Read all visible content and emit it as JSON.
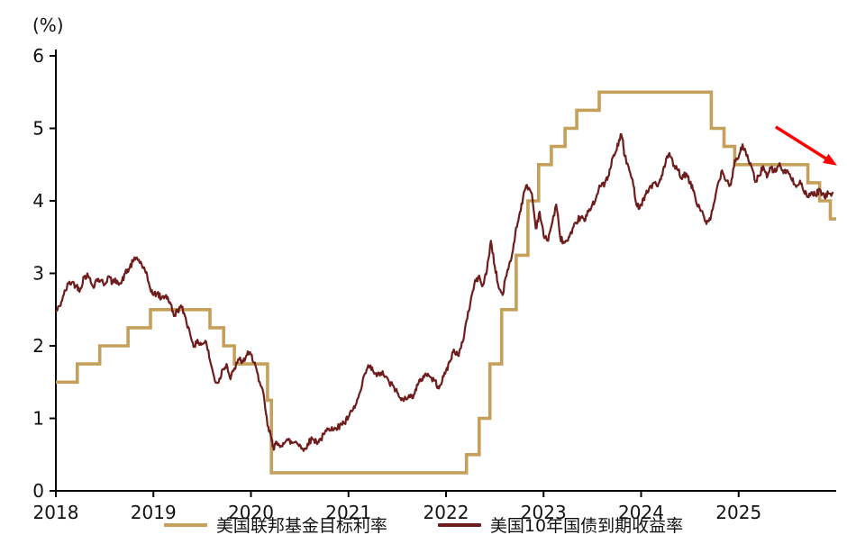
{
  "chart_data": {
    "type": "line",
    "title": "",
    "unit_label": "(%)",
    "x_range": [
      2018,
      2026
    ],
    "y_range": [
      0,
      6
    ],
    "y_ticks": [
      0,
      1,
      2,
      3,
      4,
      5,
      6
    ],
    "x_ticks": [
      2018,
      2019,
      2020,
      2021,
      2022,
      2023,
      2024,
      2025
    ],
    "grid": false,
    "legend_position": "bottom",
    "series": [
      {
        "name": "美国联邦基金目标利率",
        "color": "#C5A05A",
        "style": "step",
        "points": [
          [
            2018.0,
            1.5
          ],
          [
            2018.22,
            1.75
          ],
          [
            2018.45,
            2.0
          ],
          [
            2018.74,
            2.25
          ],
          [
            2018.97,
            2.5
          ],
          [
            2019.58,
            2.25
          ],
          [
            2019.72,
            2.0
          ],
          [
            2019.83,
            1.75
          ],
          [
            2020.17,
            1.25
          ],
          [
            2020.21,
            0.25
          ],
          [
            2022.21,
            0.5
          ],
          [
            2022.34,
            1.0
          ],
          [
            2022.45,
            1.75
          ],
          [
            2022.57,
            2.5
          ],
          [
            2022.72,
            3.25
          ],
          [
            2022.84,
            4.0
          ],
          [
            2022.95,
            4.5
          ],
          [
            2023.08,
            4.75
          ],
          [
            2023.22,
            5.0
          ],
          [
            2023.34,
            5.25
          ],
          [
            2023.57,
            5.5
          ],
          [
            2024.72,
            5.0
          ],
          [
            2024.85,
            4.75
          ],
          [
            2024.96,
            4.5
          ],
          [
            2025.71,
            4.25
          ],
          [
            2025.83,
            4.0
          ],
          [
            2025.94,
            3.75
          ],
          [
            2026.0,
            3.75
          ]
        ]
      },
      {
        "name": "美国10年国债到期收益率",
        "color": "#6E1D1C",
        "style": "line",
        "points": [
          [
            2018.0,
            2.46
          ],
          [
            2018.04,
            2.55
          ],
          [
            2018.08,
            2.7
          ],
          [
            2018.13,
            2.86
          ],
          [
            2018.17,
            2.88
          ],
          [
            2018.21,
            2.82
          ],
          [
            2018.25,
            2.78
          ],
          [
            2018.29,
            2.96
          ],
          [
            2018.33,
            2.97
          ],
          [
            2018.38,
            2.82
          ],
          [
            2018.42,
            2.92
          ],
          [
            2018.46,
            2.9
          ],
          [
            2018.5,
            2.85
          ],
          [
            2018.54,
            2.96
          ],
          [
            2018.58,
            2.87
          ],
          [
            2018.63,
            2.9
          ],
          [
            2018.67,
            2.86
          ],
          [
            2018.71,
            3.0
          ],
          [
            2018.75,
            3.06
          ],
          [
            2018.79,
            3.16
          ],
          [
            2018.83,
            3.22
          ],
          [
            2018.88,
            3.12
          ],
          [
            2018.92,
            3.01
          ],
          [
            2018.96,
            2.83
          ],
          [
            2019.0,
            2.7
          ],
          [
            2019.04,
            2.73
          ],
          [
            2019.08,
            2.65
          ],
          [
            2019.13,
            2.7
          ],
          [
            2019.17,
            2.6
          ],
          [
            2019.21,
            2.41
          ],
          [
            2019.25,
            2.5
          ],
          [
            2019.29,
            2.53
          ],
          [
            2019.33,
            2.39
          ],
          [
            2019.38,
            2.14
          ],
          [
            2019.42,
            2.0
          ],
          [
            2019.46,
            2.05
          ],
          [
            2019.5,
            2.03
          ],
          [
            2019.54,
            2.06
          ],
          [
            2019.58,
            1.8
          ],
          [
            2019.63,
            1.52
          ],
          [
            2019.67,
            1.5
          ],
          [
            2019.71,
            1.68
          ],
          [
            2019.75,
            1.75
          ],
          [
            2019.79,
            1.54
          ],
          [
            2019.83,
            1.69
          ],
          [
            2019.88,
            1.81
          ],
          [
            2019.92,
            1.78
          ],
          [
            2019.96,
            1.88
          ],
          [
            2020.0,
            1.88
          ],
          [
            2020.04,
            1.77
          ],
          [
            2020.08,
            1.51
          ],
          [
            2020.13,
            1.33
          ],
          [
            2020.17,
            0.9
          ],
          [
            2020.21,
            0.72
          ],
          [
            2020.23,
            0.6
          ],
          [
            2020.25,
            0.64
          ],
          [
            2020.29,
            0.63
          ],
          [
            2020.33,
            0.66
          ],
          [
            2020.38,
            0.7
          ],
          [
            2020.42,
            0.66
          ],
          [
            2020.46,
            0.68
          ],
          [
            2020.5,
            0.64
          ],
          [
            2020.54,
            0.55
          ],
          [
            2020.58,
            0.65
          ],
          [
            2020.63,
            0.72
          ],
          [
            2020.67,
            0.68
          ],
          [
            2020.71,
            0.7
          ],
          [
            2020.75,
            0.78
          ],
          [
            2020.79,
            0.85
          ],
          [
            2020.83,
            0.88
          ],
          [
            2020.88,
            0.84
          ],
          [
            2020.92,
            0.93
          ],
          [
            2020.96,
            0.93
          ],
          [
            2021.0,
            1.02
          ],
          [
            2021.04,
            1.1
          ],
          [
            2021.08,
            1.2
          ],
          [
            2021.13,
            1.4
          ],
          [
            2021.17,
            1.62
          ],
          [
            2021.21,
            1.72
          ],
          [
            2021.25,
            1.66
          ],
          [
            2021.29,
            1.58
          ],
          [
            2021.33,
            1.63
          ],
          [
            2021.38,
            1.58
          ],
          [
            2021.42,
            1.48
          ],
          [
            2021.46,
            1.45
          ],
          [
            2021.5,
            1.35
          ],
          [
            2021.54,
            1.25
          ],
          [
            2021.58,
            1.3
          ],
          [
            2021.63,
            1.29
          ],
          [
            2021.67,
            1.33
          ],
          [
            2021.71,
            1.46
          ],
          [
            2021.75,
            1.54
          ],
          [
            2021.79,
            1.62
          ],
          [
            2021.83,
            1.58
          ],
          [
            2021.88,
            1.52
          ],
          [
            2021.92,
            1.44
          ],
          [
            2021.96,
            1.51
          ],
          [
            2022.0,
            1.66
          ],
          [
            2022.04,
            1.78
          ],
          [
            2022.08,
            1.95
          ],
          [
            2022.13,
            1.86
          ],
          [
            2022.17,
            2.05
          ],
          [
            2022.21,
            2.35
          ],
          [
            2022.25,
            2.6
          ],
          [
            2022.29,
            2.85
          ],
          [
            2022.33,
            2.95
          ],
          [
            2022.38,
            2.84
          ],
          [
            2022.42,
            3.05
          ],
          [
            2022.46,
            3.45
          ],
          [
            2022.5,
            3.1
          ],
          [
            2022.54,
            2.8
          ],
          [
            2022.58,
            2.7
          ],
          [
            2022.63,
            3.05
          ],
          [
            2022.67,
            3.2
          ],
          [
            2022.71,
            3.55
          ],
          [
            2022.75,
            3.8
          ],
          [
            2022.79,
            4.05
          ],
          [
            2022.83,
            4.22
          ],
          [
            2022.88,
            4.1
          ],
          [
            2022.92,
            3.62
          ],
          [
            2022.96,
            3.85
          ],
          [
            2023.0,
            3.52
          ],
          [
            2023.04,
            3.45
          ],
          [
            2023.08,
            3.65
          ],
          [
            2023.13,
            3.95
          ],
          [
            2023.17,
            3.5
          ],
          [
            2023.21,
            3.42
          ],
          [
            2023.25,
            3.45
          ],
          [
            2023.29,
            3.55
          ],
          [
            2023.33,
            3.7
          ],
          [
            2023.38,
            3.78
          ],
          [
            2023.42,
            3.72
          ],
          [
            2023.46,
            3.85
          ],
          [
            2023.5,
            3.95
          ],
          [
            2023.54,
            4.05
          ],
          [
            2023.58,
            4.2
          ],
          [
            2023.63,
            4.25
          ],
          [
            2023.67,
            4.35
          ],
          [
            2023.71,
            4.6
          ],
          [
            2023.75,
            4.7
          ],
          [
            2023.79,
            4.92
          ],
          [
            2023.81,
            4.85
          ],
          [
            2023.83,
            4.62
          ],
          [
            2023.88,
            4.42
          ],
          [
            2023.92,
            4.22
          ],
          [
            2023.96,
            3.92
          ],
          [
            2024.0,
            3.95
          ],
          [
            2024.04,
            4.08
          ],
          [
            2024.08,
            4.16
          ],
          [
            2024.13,
            4.25
          ],
          [
            2024.17,
            4.2
          ],
          [
            2024.21,
            4.35
          ],
          [
            2024.25,
            4.52
          ],
          [
            2024.29,
            4.66
          ],
          [
            2024.33,
            4.48
          ],
          [
            2024.38,
            4.42
          ],
          [
            2024.42,
            4.3
          ],
          [
            2024.46,
            4.38
          ],
          [
            2024.5,
            4.24
          ],
          [
            2024.54,
            4.14
          ],
          [
            2024.58,
            3.92
          ],
          [
            2024.63,
            3.85
          ],
          [
            2024.67,
            3.68
          ],
          [
            2024.71,
            3.74
          ],
          [
            2024.75,
            3.98
          ],
          [
            2024.79,
            4.25
          ],
          [
            2024.83,
            4.42
          ],
          [
            2024.88,
            4.28
          ],
          [
            2024.92,
            4.22
          ],
          [
            2024.96,
            4.56
          ],
          [
            2025.0,
            4.6
          ],
          [
            2025.04,
            4.78
          ],
          [
            2025.08,
            4.62
          ],
          [
            2025.13,
            4.48
          ],
          [
            2025.17,
            4.26
          ],
          [
            2025.21,
            4.35
          ],
          [
            2025.25,
            4.48
          ],
          [
            2025.29,
            4.32
          ],
          [
            2025.33,
            4.45
          ],
          [
            2025.38,
            4.4
          ],
          [
            2025.42,
            4.52
          ],
          [
            2025.46,
            4.38
          ],
          [
            2025.5,
            4.42
          ],
          [
            2025.54,
            4.3
          ],
          [
            2025.58,
            4.22
          ],
          [
            2025.63,
            4.28
          ],
          [
            2025.67,
            4.12
          ],
          [
            2025.71,
            4.05
          ],
          [
            2025.75,
            4.12
          ],
          [
            2025.79,
            4.08
          ],
          [
            2025.83,
            4.16
          ],
          [
            2025.88,
            4.05
          ],
          [
            2025.92,
            4.1
          ],
          [
            2025.97,
            4.12
          ]
        ]
      }
    ],
    "annotation_arrow": {
      "color": "#FF0000",
      "x1": 2025.38,
      "y1": 5.02,
      "x2": 2025.97,
      "y2": 4.52
    }
  }
}
